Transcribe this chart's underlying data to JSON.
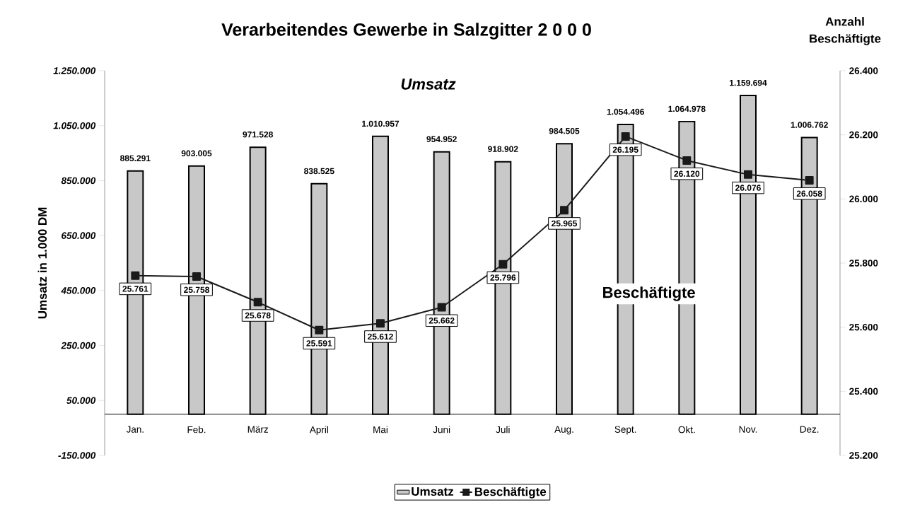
{
  "chart_data": {
    "type": "bar",
    "title": "Verarbeitendes Gewerbe in Salzgitter 2 0 0 0",
    "ylabel": "Umsatz in 1.000 DM",
    "y2label": "Anzahl Beschäftigte",
    "categories": [
      "Jan.",
      "Feb.",
      "März",
      "April",
      "Mai",
      "Juni",
      "Juli",
      "Aug.",
      "Sept.",
      "Okt.",
      "Nov.",
      "Dez."
    ],
    "series": [
      {
        "name": "Umsatz",
        "color": "#c8c8c8",
        "values": [
          885291,
          903005,
          971528,
          838525,
          1010957,
          954952,
          918902,
          984505,
          1054496,
          1064978,
          1159694,
          1006762
        ],
        "value_labels": [
          "885.291",
          "903.005",
          "971.528",
          "838.525",
          "1.010.957",
          "954.952",
          "918.902",
          "984.505",
          "1.054.496",
          "1.064.978",
          "1.159.694",
          "1.006.762"
        ]
      },
      {
        "name": "Beschäftigte",
        "type": "line",
        "axis": "y2",
        "color": "#1a1a1a",
        "values": [
          25761,
          25758,
          25678,
          25591,
          25612,
          25662,
          25796,
          25965,
          26195,
          26120,
          26076,
          26058
        ],
        "value_labels": [
          "25.761",
          "25.758",
          "25.678",
          "25.591",
          "25.612",
          "25.662",
          "25.796",
          "25.965",
          "26.195",
          "26.120",
          "26.076",
          "26.058"
        ]
      }
    ],
    "annotations": [
      "Umsatz",
      "Beschäftigte"
    ],
    "ylim": [
      -150000,
      1250000
    ],
    "yticks": [
      {
        "value": -150000,
        "label": "-150.000"
      },
      {
        "value": 50000,
        "label": "50.000"
      },
      {
        "value": 250000,
        "label": "250.000"
      },
      {
        "value": 450000,
        "label": "450.000"
      },
      {
        "value": 650000,
        "label": "650.000"
      },
      {
        "value": 850000,
        "label": "850.000"
      },
      {
        "value": 1050000,
        "label": "1.050.000"
      },
      {
        "value": 1250000,
        "label": "1.250.000"
      }
    ],
    "y2lim": [
      25200,
      26400
    ],
    "y2ticks": [
      {
        "value": 25200,
        "label": "25.200"
      },
      {
        "value": 25400,
        "label": "25.400"
      },
      {
        "value": 25600,
        "label": "25.600"
      },
      {
        "value": 25800,
        "label": "25.800"
      },
      {
        "value": 26000,
        "label": "26.000"
      },
      {
        "value": 26200,
        "label": "26.200"
      },
      {
        "value": 26400,
        "label": "26.400"
      }
    ],
    "marker": "square",
    "line_style": "solid",
    "legend": "bottom",
    "grid": false
  }
}
